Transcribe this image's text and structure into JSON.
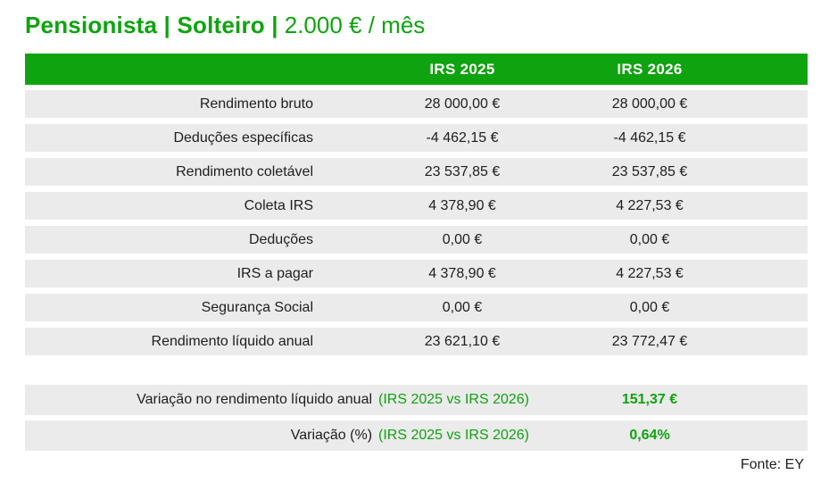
{
  "title": {
    "profile": "Pensionista | Solteiro |",
    "income": "2.000 € / mês"
  },
  "colors": {
    "green": "#0FA30F",
    "row_background": "#EBEBEB",
    "header_text": "#FFFFFF",
    "body_text": "#1E1E1E"
  },
  "chart_data": {
    "type": "table",
    "title": "Pensionista | Solteiro | 2.000 € / mês",
    "columns": [
      "IRS 2025",
      "IRS 2026"
    ],
    "rows": [
      {
        "label": "Rendimento bruto",
        "irs2025": "28 000,00 €",
        "irs2026": "28 000,00 €"
      },
      {
        "label": "Deduções específicas",
        "irs2025": "-4 462,15 €",
        "irs2026": "-4 462,15 €"
      },
      {
        "label": "Rendimento coletável",
        "irs2025": "23 537,85 €",
        "irs2026": "23 537,85 €"
      },
      {
        "label": "Coleta IRS",
        "irs2025": "4 378,90 €",
        "irs2026": "4 227,53 €"
      },
      {
        "label": "Deduções",
        "irs2025": "0,00 €",
        "irs2026": "0,00 €"
      },
      {
        "label": "IRS a pagar",
        "irs2025": "4 378,90 €",
        "irs2026": "4 227,53 €"
      },
      {
        "label": "Segurança Social",
        "irs2025": "0,00 €",
        "irs2026": "0,00 €"
      },
      {
        "label": "Rendimento líquido anual",
        "irs2025": "23 621,10 €",
        "irs2026": "23 772,47 €"
      }
    ],
    "summary": [
      {
        "label": "Variação no rendimento líquido anual",
        "annotation": "(IRS 2025 vs IRS 2026)",
        "value": "151,37 €"
      },
      {
        "label": "Variação (%)",
        "annotation": "(IRS 2025 vs IRS 2026)",
        "value": "0,64%"
      }
    ],
    "source": "Fonte: EY"
  }
}
